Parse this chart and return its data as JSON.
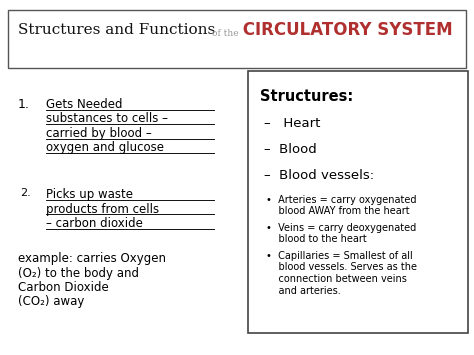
{
  "bg_color": "#ffffff",
  "title_left": "Structures and Functions ",
  "title_of": "of the",
  "title_right": " CIRCULATORY SYSTEM",
  "title_color_left": "#111111",
  "title_color_of": "#999999",
  "title_color_right": "#b03030",
  "item1_num": "1.",
  "item1_lines": [
    "Gets Needed",
    "substances to cells –",
    "carried by blood –",
    "oxygen and glucose"
  ],
  "item2_num": "2.",
  "item2_lines": [
    "Picks up waste",
    "products from cells",
    "– carbon dioxide"
  ],
  "example_lines": [
    "example: carries Oxygen",
    "(O₂) to the body and",
    "Carbon Dioxide",
    "(CO₂) away"
  ],
  "box_title": "Structures:",
  "dash_items": [
    "–   Heart",
    "–  Blood",
    "–  Blood vessels:"
  ],
  "bullet_items": [
    [
      "Arteries = carry oxygenated",
      "blood AWAY from the heart"
    ],
    [
      "Veins = carry deoxygenated",
      "blood to the heart"
    ],
    [
      "Capillaries = Smallest of all",
      "blood vessels. Serves as the",
      "connection between veins",
      "and arteries."
    ]
  ]
}
